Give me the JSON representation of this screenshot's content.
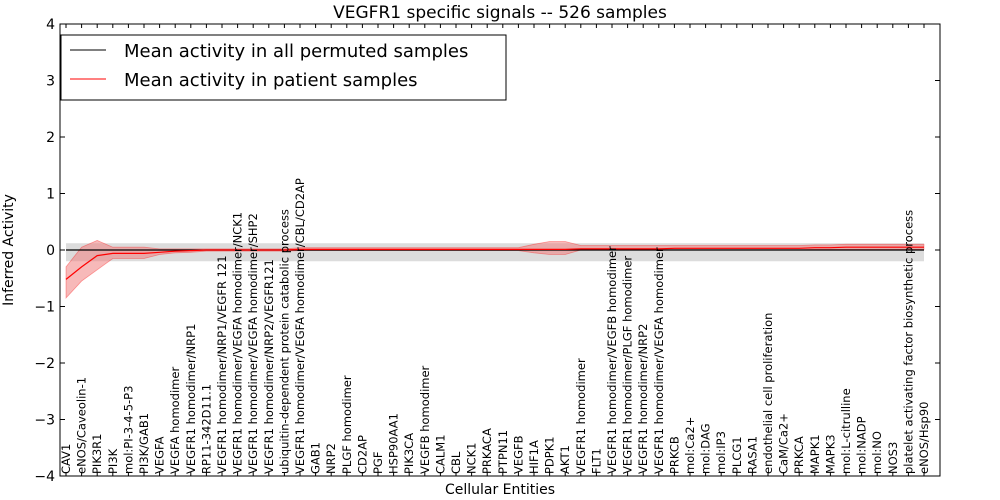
{
  "chart_data": {
    "type": "line",
    "title": "VEGFR1 specific signals -- 526 samples",
    "xlabel": "Cellular Entities",
    "ylabel": "Inferred Activity",
    "ylim": [
      -4,
      4
    ],
    "yticks": [
      "−4",
      "−3",
      "−2",
      "−1",
      "0",
      "1",
      "2",
      "3",
      "4"
    ],
    "legend_position": "top-left",
    "categories": [
      "CAV1",
      "eNOS/Caveolin-1",
      "PIK3R1",
      "PI3K",
      "mol:PI-3-4-5-P3",
      "PI3K/GAB1",
      "VEGFA",
      "VEGFA homodimer",
      "VEGFR1 homodimer/NRP1",
      "RP11-342D11.1",
      "VEGFR1 homodimer/NRP1/VEGFR 121",
      "VEGFR1 homodimer/VEGFA homodimer/NCK1",
      "VEGFR1 homodimer/VEGFA homodimer/SHP2",
      "VEGFR1 homodimer/NRP2/VEGFR121",
      "ubiquitin-dependent protein catabolic process",
      "VEGFR1 homodimer/VEGFA homodimer/CBL/CD2AP",
      "GAB1",
      "NRP2",
      "PLGF homodimer",
      "CD2AP",
      "PGF",
      "HSP90AA1",
      "PIK3CA",
      "VEGFB homodimer",
      "CALM1",
      "CBL",
      "NCK1",
      "PRKACA",
      "PTPN11",
      "VEGFB",
      "HIF1A",
      "PDPK1",
      "AKT1",
      "VEGFR1 homodimer",
      "FLT1",
      "VEGFR1 homodimer/VEGFB homodimer",
      "VEGFR1 homodimer/PLGF homodimer",
      "VEGFR1 homodimer/NRP2",
      "VEGFR1 homodimer/VEGFA homodimer",
      "PRKCB",
      "mol:Ca2+",
      "mol:DAG",
      "mol:IP3",
      "PLCG1",
      "RASA1",
      "endothelial cell proliferation",
      "CaM/Ca2+",
      "PRKCA",
      "MAPK1",
      "MAPK3",
      "mol:L-citrulline",
      "mol:NADP",
      "mol:NO",
      "NOS3",
      "platelet activating factor biosynthetic process",
      "eNOS/Hsp90"
    ],
    "series": [
      {
        "name": "Mean activity in all permuted samples",
        "color": "#000000",
        "band_color": "#bfbfbf",
        "values": [
          0,
          0,
          0,
          0,
          0,
          0,
          0,
          0,
          0,
          0,
          0,
          0,
          0,
          0,
          0,
          0,
          0,
          0,
          0,
          0,
          0,
          0,
          0,
          0,
          0,
          0,
          0,
          0,
          0,
          0,
          0,
          0,
          0,
          0,
          0,
          0,
          0,
          0,
          0,
          0,
          0,
          0,
          0,
          0,
          0,
          0,
          0,
          0,
          0,
          0,
          0,
          0,
          0,
          0,
          0,
          0
        ],
        "band_low": [
          -0.2,
          -0.2,
          -0.2,
          -0.2,
          -0.2,
          -0.2,
          -0.2,
          -0.2,
          -0.2,
          -0.2,
          -0.2,
          -0.2,
          -0.2,
          -0.2,
          -0.2,
          -0.2,
          -0.2,
          -0.2,
          -0.2,
          -0.2,
          -0.2,
          -0.2,
          -0.2,
          -0.2,
          -0.2,
          -0.2,
          -0.2,
          -0.2,
          -0.2,
          -0.2,
          -0.2,
          -0.2,
          -0.2,
          -0.2,
          -0.2,
          -0.2,
          -0.2,
          -0.2,
          -0.2,
          -0.2,
          -0.2,
          -0.2,
          -0.2,
          -0.2,
          -0.2,
          -0.2,
          -0.2,
          -0.2,
          -0.2,
          -0.2,
          -0.2,
          -0.2,
          -0.2,
          -0.2,
          -0.2,
          -0.2
        ],
        "band_high": [
          0.12,
          0.12,
          0.12,
          0.12,
          0.12,
          0.12,
          0.12,
          0.12,
          0.12,
          0.12,
          0.12,
          0.12,
          0.12,
          0.12,
          0.12,
          0.12,
          0.12,
          0.12,
          0.12,
          0.12,
          0.12,
          0.12,
          0.12,
          0.12,
          0.12,
          0.12,
          0.12,
          0.12,
          0.12,
          0.12,
          0.12,
          0.12,
          0.12,
          0.12,
          0.12,
          0.12,
          0.12,
          0.12,
          0.12,
          0.12,
          0.12,
          0.12,
          0.12,
          0.12,
          0.12,
          0.12,
          0.12,
          0.12,
          0.12,
          0.12,
          0.12,
          0.12,
          0.12,
          0.12,
          0.12,
          0.12
        ]
      },
      {
        "name": "Mean activity in patient samples",
        "color": "#ff0000",
        "band_color": "#f08080",
        "values": [
          -0.52,
          -0.3,
          -0.1,
          -0.06,
          -0.06,
          -0.06,
          -0.04,
          -0.02,
          -0.01,
          0,
          0,
          0,
          0,
          0,
          0,
          0.01,
          0.01,
          0.01,
          0.01,
          0.01,
          0.01,
          0.01,
          0.01,
          0.01,
          0.01,
          0.01,
          0.01,
          0.01,
          0.01,
          0.01,
          0.01,
          0.01,
          0.01,
          0.02,
          0.02,
          0.02,
          0.02,
          0.02,
          0.02,
          0.03,
          0.03,
          0.03,
          0.03,
          0.03,
          0.03,
          0.03,
          0.03,
          0.03,
          0.04,
          0.04,
          0.05,
          0.05,
          0.05,
          0.05,
          0.05,
          0.05
        ],
        "band_low": [
          -0.85,
          -0.55,
          -0.35,
          -0.15,
          -0.15,
          -0.15,
          -0.08,
          -0.05,
          -0.04,
          -0.02,
          -0.02,
          -0.02,
          -0.02,
          -0.02,
          -0.02,
          -0.01,
          -0.01,
          -0.01,
          -0.01,
          -0.01,
          -0.01,
          -0.01,
          -0.01,
          -0.01,
          -0.01,
          -0.01,
          -0.01,
          -0.01,
          -0.01,
          -0.01,
          -0.05,
          -0.08,
          -0.08,
          0,
          0,
          0,
          0,
          0,
          0,
          0,
          0,
          0,
          0,
          0,
          0,
          0,
          0,
          0,
          0.01,
          0.01,
          0.01,
          0.01,
          0.01,
          0.01,
          0.01,
          0.01
        ],
        "band_high": [
          -0.3,
          0.05,
          0.17,
          0.05,
          0.05,
          0.05,
          0.02,
          0.02,
          0.02,
          0.02,
          0.02,
          0.02,
          0.02,
          0.02,
          0.02,
          0.04,
          0.04,
          0.04,
          0.04,
          0.04,
          0.04,
          0.04,
          0.04,
          0.04,
          0.04,
          0.04,
          0.04,
          0.04,
          0.04,
          0.04,
          0.1,
          0.15,
          0.15,
          0.08,
          0.08,
          0.08,
          0.08,
          0.08,
          0.08,
          0.08,
          0.08,
          0.08,
          0.08,
          0.08,
          0.08,
          0.08,
          0.08,
          0.08,
          0.09,
          0.09,
          0.1,
          0.1,
          0.1,
          0.1,
          0.1,
          0.1
        ]
      }
    ]
  }
}
